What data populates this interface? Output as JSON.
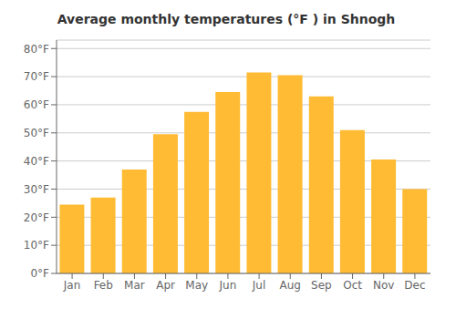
{
  "chart_data": {
    "type": "bar",
    "title": "Average monthly temperatures (°F ) in Shnogh",
    "categories": [
      "Jan",
      "Feb",
      "Mar",
      "Apr",
      "May",
      "Jun",
      "Jul",
      "Aug",
      "Sep",
      "Oct",
      "Nov",
      "Dec"
    ],
    "values": [
      24.5,
      27.0,
      37.0,
      49.5,
      57.5,
      64.5,
      71.5,
      70.5,
      63.0,
      51.0,
      40.5,
      30.0
    ],
    "color": "#FFBB33",
    "ylim": [
      0,
      83
    ],
    "yticks": [
      {
        "value": 0,
        "label": "0°F"
      },
      {
        "value": 10,
        "label": "10°F"
      },
      {
        "value": 20,
        "label": "20°F"
      },
      {
        "value": 30,
        "label": "30°F"
      },
      {
        "value": 40,
        "label": "40°F"
      },
      {
        "value": 50,
        "label": "50°F"
      },
      {
        "value": 60,
        "label": "60°F"
      },
      {
        "value": 70,
        "label": "70°F"
      },
      {
        "value": 80,
        "label": "80°F"
      }
    ],
    "grid": true
  }
}
